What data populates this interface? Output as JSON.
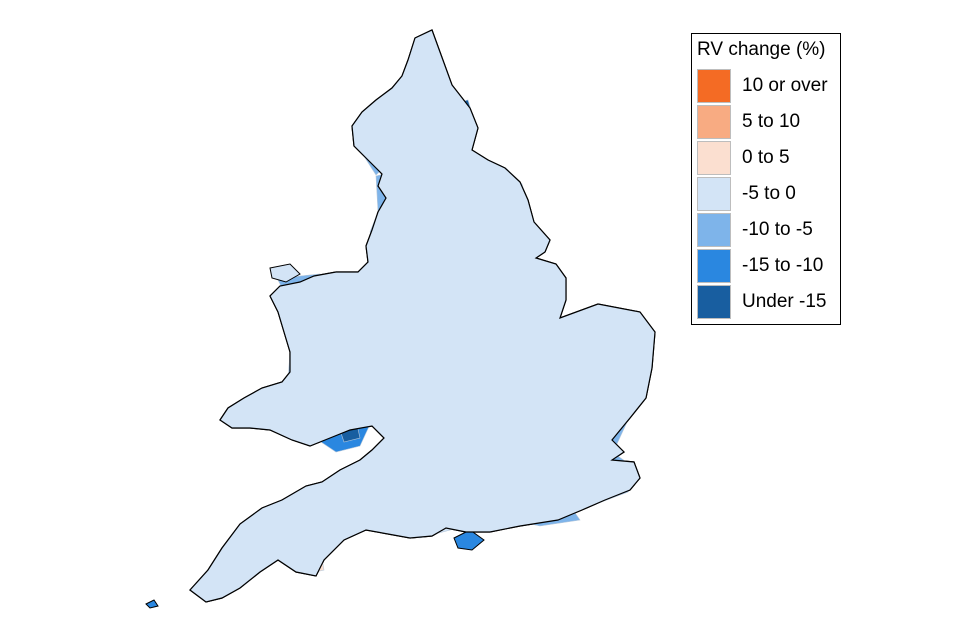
{
  "legend": {
    "title": "RV change (%)",
    "items": [
      {
        "label": "10 or over",
        "color": "#f46b24"
      },
      {
        "label": "5 to 10",
        "color": "#f8ab82"
      },
      {
        "label": "0 to 5",
        "color": "#fbdfd0"
      },
      {
        "label": "-5 to 0",
        "color": "#d3e4f6"
      },
      {
        "label": "-10 to -5",
        "color": "#7eb4ea"
      },
      {
        "label": "-15 to -10",
        "color": "#2a87e0"
      },
      {
        "label": "Under -15",
        "color": "#185ea0"
      }
    ]
  },
  "map": {
    "region": "England and Wales local authorities",
    "land_color": "#d3e4f6",
    "outline_color": "#000000",
    "boundary_color": "#b5c7da"
  }
}
